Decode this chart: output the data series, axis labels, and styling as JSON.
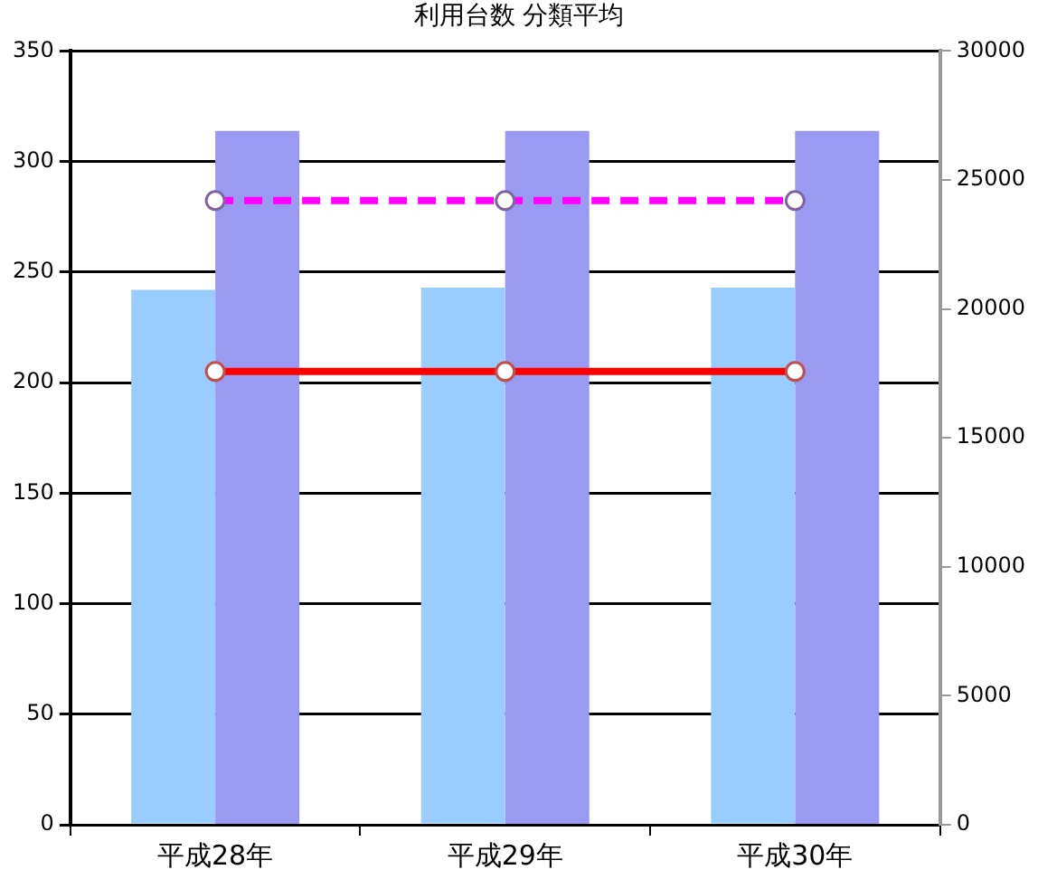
{
  "chart_data": {
    "type": "bar",
    "title": "利用台数 分類平均",
    "categories": [
      "平成28年",
      "平成29年",
      "平成30年"
    ],
    "series": [
      {
        "color": "#99ccff",
        "values": [
          242,
          243,
          243
        ]
      },
      {
        "color": "#9a9af2",
        "axis": "y2",
        "values": [
          26900,
          26900,
          26900
        ]
      },
      {
        "type": "line",
        "color": "#ff00ff",
        "axis": "y2",
        "line_style": "dashed",
        "values": [
          24200,
          24200,
          24200
        ]
      },
      {
        "type": "line",
        "color": "#ff0000",
        "line_style": "solid",
        "values": [
          205,
          205,
          205
        ]
      }
    ],
    "ylim": [
      0,
      350
    ],
    "yticks": [
      0,
      50,
      100,
      150,
      200,
      250,
      300,
      350
    ],
    "y2lim": [
      0,
      30000
    ],
    "y2ticks": [
      0,
      5000,
      10000,
      15000,
      20000,
      25000,
      30000
    ],
    "grid": "y",
    "legend": false,
    "marker": "circle"
  }
}
